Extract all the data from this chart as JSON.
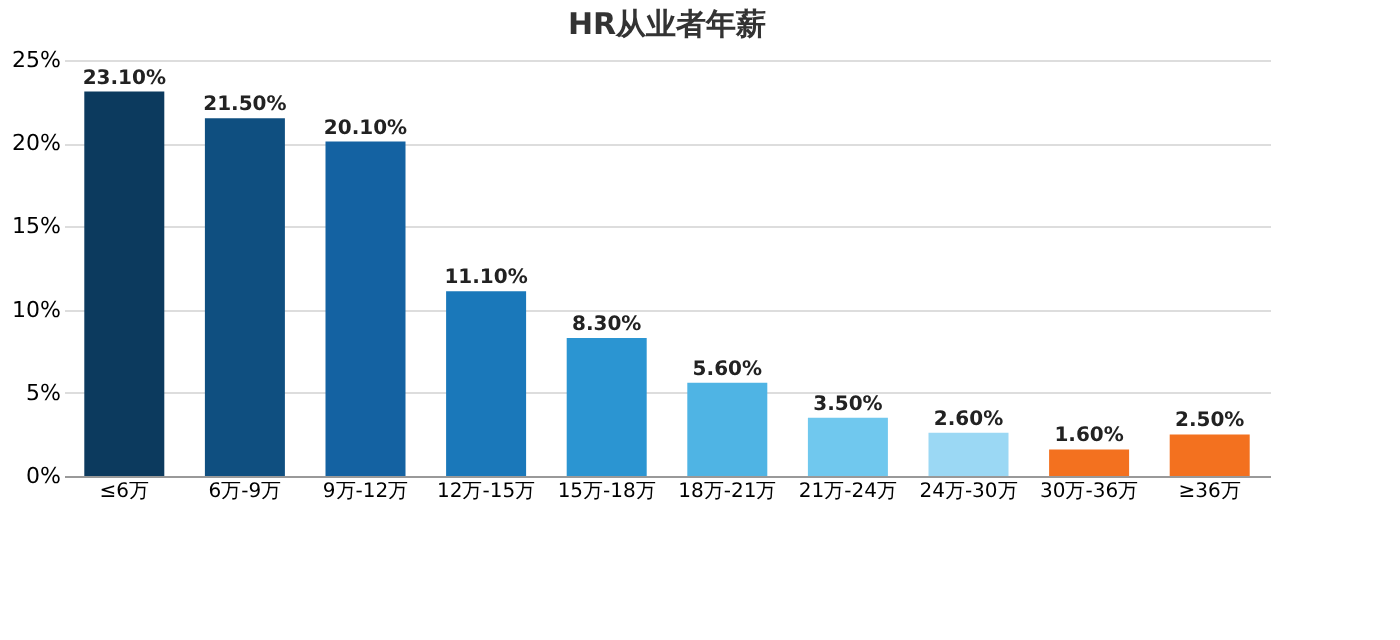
{
  "chart_data": {
    "type": "bar",
    "title": "HR从业者年薪",
    "categories": [
      "≤6万",
      "6万-9万",
      "9万-12万",
      "12万-15万",
      "15万-18万",
      "18万-21万",
      "21万-24万",
      "24万-30万",
      "30万-36万",
      "≥36万"
    ],
    "values": [
      23.1,
      21.5,
      20.1,
      11.1,
      8.3,
      5.6,
      3.5,
      2.6,
      1.6,
      2.5
    ],
    "value_labels": [
      "23.10%",
      "21.50%",
      "20.10%",
      "11.10%",
      "8.30%",
      "5.60%",
      "3.50%",
      "2.60%",
      "1.60%",
      "2.50%"
    ],
    "colors": [
      "#0c3a5e",
      "#0f4f80",
      "#1462a2",
      "#1a78ba",
      "#2b95d2",
      "#4fb4e4",
      "#70c8ee",
      "#9bd8f4",
      "#f3711f",
      "#f3711f"
    ],
    "ylim": [
      0,
      25
    ],
    "yticks": [
      {
        "value": 0,
        "label": "0%"
      },
      {
        "value": 5,
        "label": "5%"
      },
      {
        "value": 10,
        "label": "10%"
      },
      {
        "value": 15,
        "label": "15%"
      },
      {
        "value": 20,
        "label": "20%"
      },
      {
        "value": 25,
        "label": "25%"
      }
    ],
    "grid": "y"
  }
}
